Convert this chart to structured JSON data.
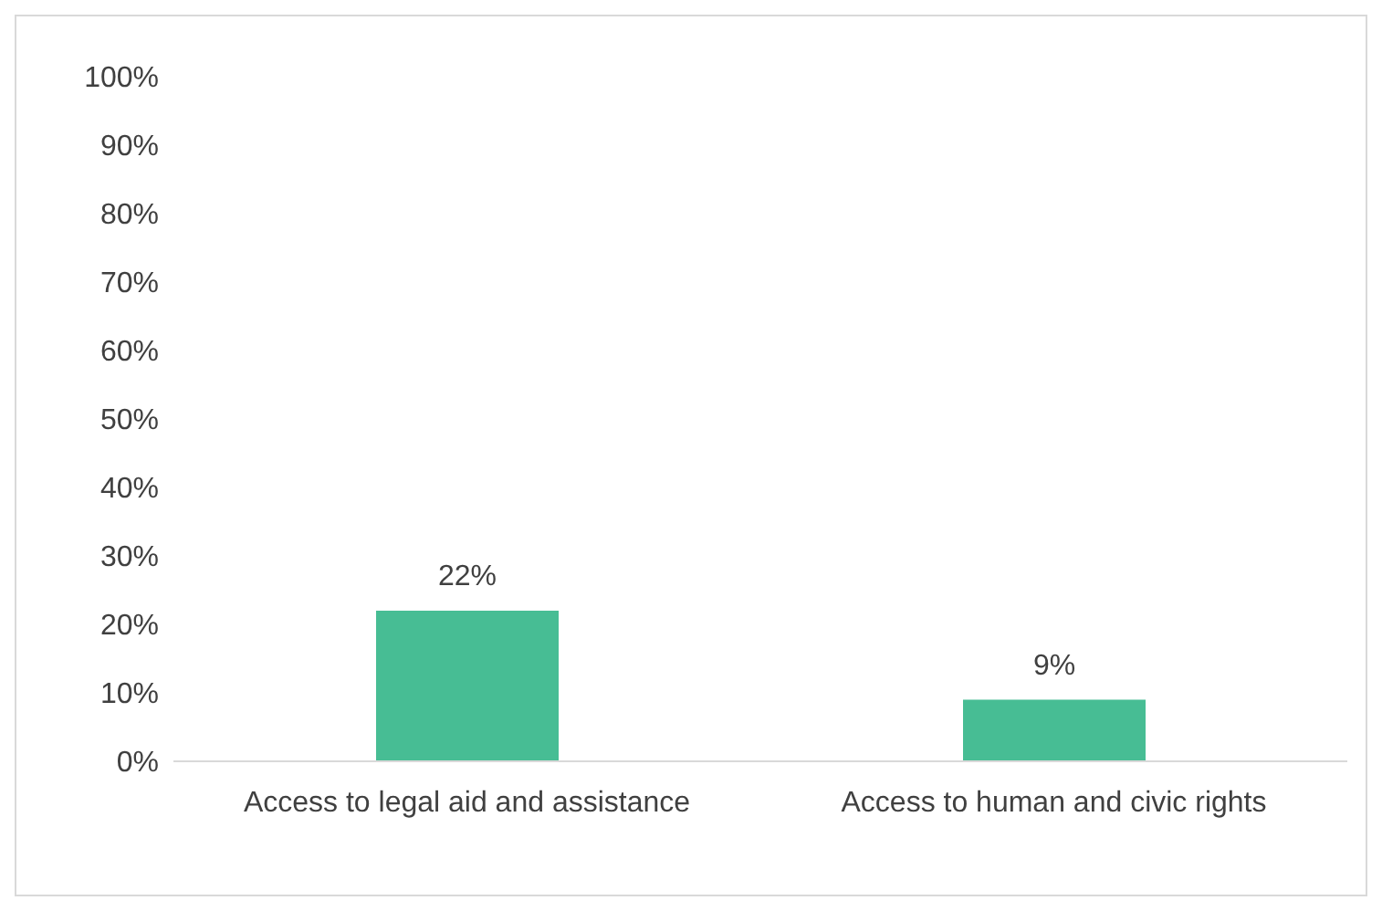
{
  "chart_data": {
    "type": "bar",
    "categories": [
      "Access to legal aid and assistance",
      "Access to human and civic rights"
    ],
    "values": [
      22,
      9
    ],
    "value_labels": [
      "22%",
      "9%"
    ],
    "color": "#47bd94",
    "ylim": [
      0,
      100
    ],
    "yticks": [
      {
        "value": 0,
        "label": "0%"
      },
      {
        "value": 10,
        "label": "10%"
      },
      {
        "value": 20,
        "label": "20%"
      },
      {
        "value": 30,
        "label": "30%"
      },
      {
        "value": 40,
        "label": "40%"
      },
      {
        "value": 50,
        "label": "50%"
      },
      {
        "value": 60,
        "label": "60%"
      },
      {
        "value": 70,
        "label": "70%"
      },
      {
        "value": 80,
        "label": "80%"
      },
      {
        "value": 90,
        "label": "90%"
      },
      {
        "value": 100,
        "label": "100%"
      }
    ]
  }
}
